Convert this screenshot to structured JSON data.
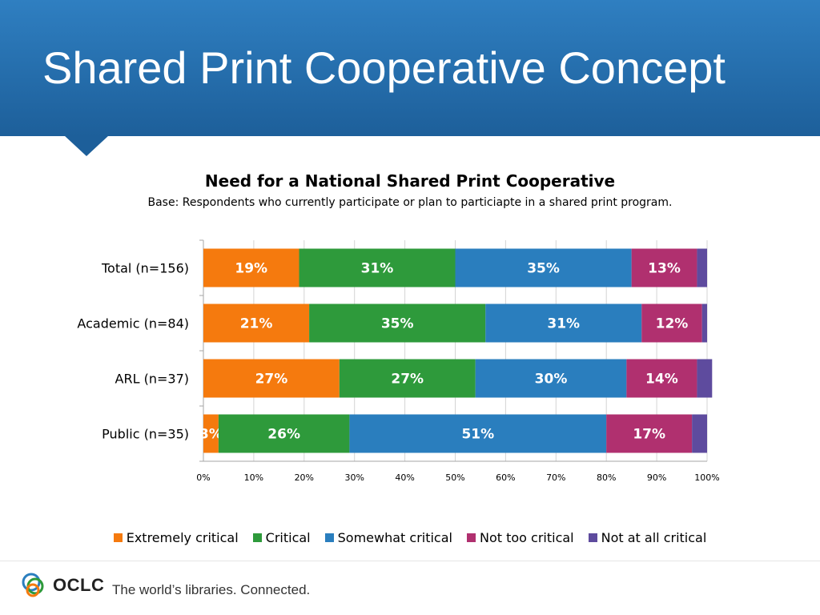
{
  "slide": {
    "title": "Shared Print Cooperative Concept",
    "logo_text": "OCLC",
    "tagline": "The world’s libraries. Connected."
  },
  "chart_data": {
    "type": "bar",
    "orientation": "horizontal",
    "stacked": true,
    "title": "Need for a National Shared Print Cooperative",
    "subtitle": "Base:  Respondents who currently participate or plan to particiapte in a shared print program.",
    "categories": [
      "Total (n=156)",
      "Academic (n=84)",
      "ARL (n=37)",
      "Public (n=35)"
    ],
    "series": [
      {
        "name": "Extremely critical",
        "color": "#f57a0e",
        "values": [
          19,
          21,
          27,
          3
        ],
        "labels": [
          "19%",
          "21%",
          "27%",
          "3%"
        ]
      },
      {
        "name": "Critical",
        "color": "#2e9a3b",
        "values": [
          31,
          35,
          27,
          26
        ],
        "labels": [
          "31%",
          "35%",
          "27%",
          "26%"
        ]
      },
      {
        "name": "Somewhat critical",
        "color": "#2a7ebe",
        "values": [
          35,
          31,
          30,
          51
        ],
        "labels": [
          "35%",
          "31%",
          "30%",
          "51%"
        ]
      },
      {
        "name": "Not too critical",
        "color": "#b0306f",
        "values": [
          13,
          12,
          14,
          17
        ],
        "labels": [
          "13%",
          "12%",
          "14%",
          "17%"
        ]
      },
      {
        "name": "Not at all critical",
        "color": "#5e4b9e",
        "values": [
          2,
          1,
          3,
          3
        ],
        "labels": [
          "",
          "",
          "",
          ""
        ]
      }
    ],
    "x_ticks": [
      "0%",
      "10%",
      "20%",
      "30%",
      "40%",
      "50%",
      "60%",
      "70%",
      "80%",
      "90%",
      "100%"
    ],
    "xlim": [
      0,
      100
    ],
    "grid": true,
    "legend_position": "bottom"
  }
}
